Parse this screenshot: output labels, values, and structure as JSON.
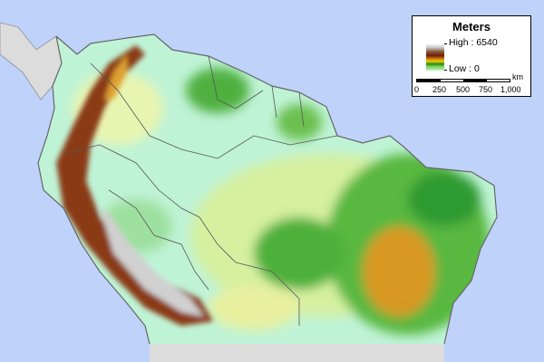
{
  "legend": {
    "title": "Meters",
    "high_label": "High : 6540",
    "low_label": "Low : 0",
    "scale_unit": "km",
    "scale_ticks": [
      "0",
      "250",
      "500",
      "750",
      "1,000"
    ]
  },
  "colors": {
    "ocean": "#bed2fa",
    "outside_land": "#dcdcdc",
    "lowland": "#a8f2dc",
    "low_plain": "#e8f5b0",
    "upland": "#3aa63a",
    "plateau": "#d89820",
    "andes_high": "#7a2a10",
    "peaks": "#d0d0d0",
    "borders": "#555555"
  }
}
